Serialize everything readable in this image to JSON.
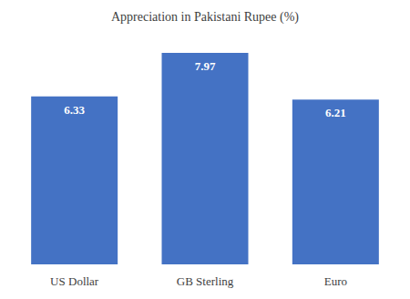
{
  "chart_data": {
    "type": "bar",
    "title": "Appreciation in Pakistani Rupee (%)",
    "categories": [
      "US Dollar",
      "GB Sterling",
      "Euro"
    ],
    "values": [
      6.33,
      7.97,
      6.21
    ],
    "color": "#4472c4",
    "ylim": [
      0,
      9
    ],
    "grid": false,
    "tick_labels": "x",
    "data_labels": true
  }
}
